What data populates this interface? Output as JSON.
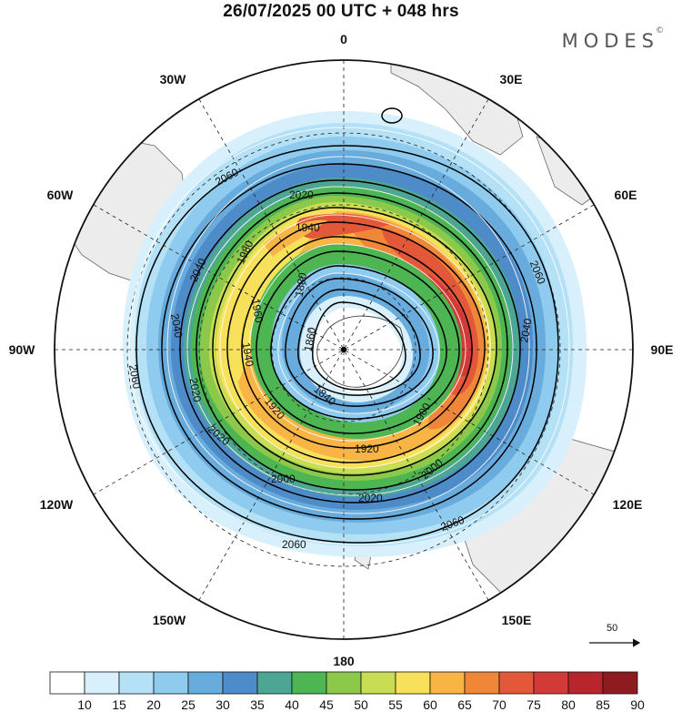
{
  "header": {
    "title": "26/07/2025  00 UTC  + 048 hrs",
    "brand": "MODES",
    "brand_mark": "©"
  },
  "map": {
    "projection": "south-polar-stereographic",
    "longitude_labels": [
      {
        "id": "lon-0",
        "text": "0",
        "lon": 0
      },
      {
        "id": "lon-30e",
        "text": "30E",
        "lon": 30
      },
      {
        "id": "lon-60e",
        "text": "60E",
        "lon": 60
      },
      {
        "id": "lon-90e",
        "text": "90E",
        "lon": 90
      },
      {
        "id": "lon-120e",
        "text": "120E",
        "lon": 120
      },
      {
        "id": "lon-150e",
        "text": "150E",
        "lon": 150
      },
      {
        "id": "lon-180",
        "text": "180",
        "lon": 180
      },
      {
        "id": "lon-150w",
        "text": "150W",
        "lon": -150
      },
      {
        "id": "lon-120w",
        "text": "120W",
        "lon": -120
      },
      {
        "id": "lon-90w",
        "text": "90W",
        "lon": -90
      },
      {
        "id": "lon-60w",
        "text": "60W",
        "lon": -60
      },
      {
        "id": "lon-30w",
        "text": "30W",
        "lon": -30
      }
    ],
    "height_contour_labels": [
      "2060",
      "2040",
      "2020",
      "2000",
      "1980",
      "1960",
      "1940",
      "1920",
      "1900",
      "1880",
      "1860",
      "1840"
    ],
    "wind_reference_vector": {
      "value": "50"
    },
    "colors": {
      "land": "#ececec",
      "contour": "#000000",
      "streamline": "#ffffff"
    }
  },
  "colorbar": {
    "levels": [
      "10",
      "15",
      "20",
      "25",
      "30",
      "35",
      "40",
      "45",
      "50",
      "55",
      "60",
      "65",
      "70",
      "75",
      "80",
      "85",
      "90"
    ],
    "colors": [
      "#ffffff",
      "#d7f0fb",
      "#b4e1f5",
      "#8ecbee",
      "#68acdd",
      "#4e8cc9",
      "#4da694",
      "#4db552",
      "#8cc94a",
      "#c8dc54",
      "#f7e05a",
      "#f8b546",
      "#f08638",
      "#e4583a",
      "#d13a36",
      "#b8252c",
      "#8e1b20"
    ]
  }
}
